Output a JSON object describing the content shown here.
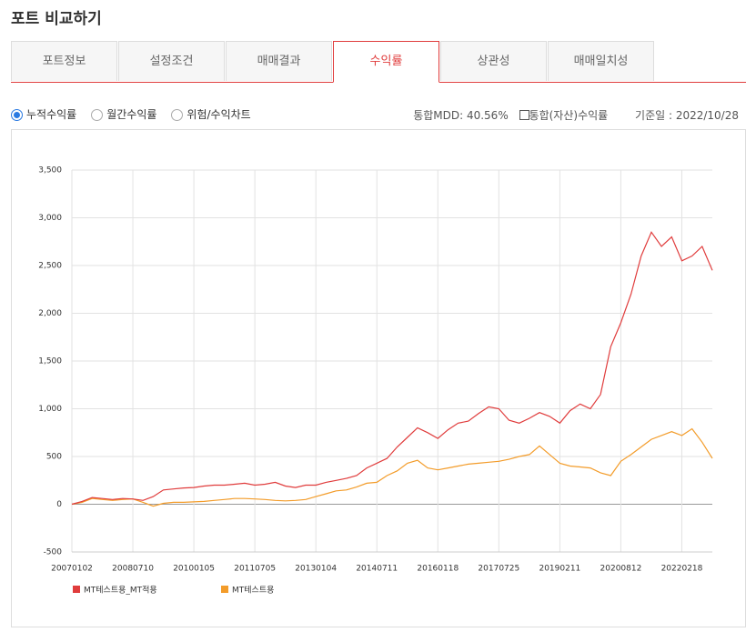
{
  "header": {
    "title": "포트 비교하기"
  },
  "tabs": [
    {
      "label": "포트정보",
      "active": false
    },
    {
      "label": "설정조건",
      "active": false
    },
    {
      "label": "매매결과",
      "active": false
    },
    {
      "label": "수익률",
      "active": true
    },
    {
      "label": "상관성",
      "active": false
    },
    {
      "label": "매매일치성",
      "active": false
    }
  ],
  "options": [
    {
      "label": "누적수익률",
      "checked": true
    },
    {
      "label": "월간수익률",
      "checked": false
    },
    {
      "label": "위험/수익차트",
      "checked": false
    }
  ],
  "info": {
    "mdd": "통합MDD: 40.56%",
    "checkbox_label": "통합(자산)수익률",
    "checkbox_checked": false,
    "base_date": "기준일 : 2022/10/28"
  },
  "chart_data": {
    "type": "line",
    "grid": true,
    "categories": [
      "20070102",
      null,
      null,
      null,
      null,
      null,
      "20080710",
      null,
      null,
      null,
      null,
      null,
      "20100105",
      null,
      null,
      null,
      null,
      null,
      "20110705",
      null,
      null,
      null,
      null,
      null,
      "20130104",
      null,
      null,
      null,
      null,
      null,
      "20140711",
      null,
      null,
      null,
      null,
      null,
      "20160118",
      null,
      null,
      null,
      null,
      null,
      "20170725",
      null,
      null,
      null,
      null,
      null,
      "20190211",
      null,
      null,
      null,
      null,
      null,
      "20200812",
      null,
      null,
      null,
      null,
      null,
      "20220218",
      null,
      null,
      null
    ],
    "ylim": [
      -500,
      3500
    ],
    "yticks": [
      -500,
      0,
      500,
      {
        "value": 1000,
        "label": "1,000"
      },
      {
        "value": 1500,
        "label": "1,500"
      },
      {
        "value": 2000,
        "label": "2,000"
      },
      {
        "value": 2500,
        "label": "2,500"
      },
      {
        "value": 3000,
        "label": "3,000"
      },
      {
        "value": 3500,
        "label": "3,500"
      }
    ],
    "series": [
      {
        "name": "MT테스트용_MT적용",
        "color": "#e03c3c",
        "values": [
          0,
          30,
          70,
          60,
          50,
          60,
          55,
          40,
          80,
          150,
          160,
          170,
          175,
          190,
          200,
          200,
          210,
          220,
          200,
          210,
          230,
          190,
          175,
          200,
          200,
          230,
          250,
          270,
          300,
          380,
          430,
          480,
          600,
          700,
          800,
          750,
          690,
          780,
          850,
          870,
          950,
          1020,
          1000,
          880,
          850,
          900,
          960,
          920,
          850,
          980,
          1050,
          1000,
          1150,
          1650,
          1900,
          2200,
          2600,
          2850,
          2700,
          2800,
          2550,
          2600,
          2700,
          2450
        ]
      },
      {
        "name": "MT테스트용",
        "color": "#f39c2a",
        "values": [
          0,
          20,
          60,
          50,
          40,
          50,
          55,
          20,
          -20,
          10,
          20,
          20,
          25,
          30,
          40,
          50,
          60,
          60,
          55,
          50,
          40,
          35,
          40,
          50,
          80,
          110,
          140,
          150,
          180,
          220,
          230,
          300,
          350,
          430,
          460,
          380,
          360,
          380,
          400,
          420,
          430,
          440,
          450,
          470,
          500,
          520,
          610,
          520,
          430,
          400,
          390,
          380,
          330,
          300,
          450,
          520,
          600,
          680,
          720,
          760,
          720,
          790,
          650,
          480
        ]
      }
    ]
  }
}
